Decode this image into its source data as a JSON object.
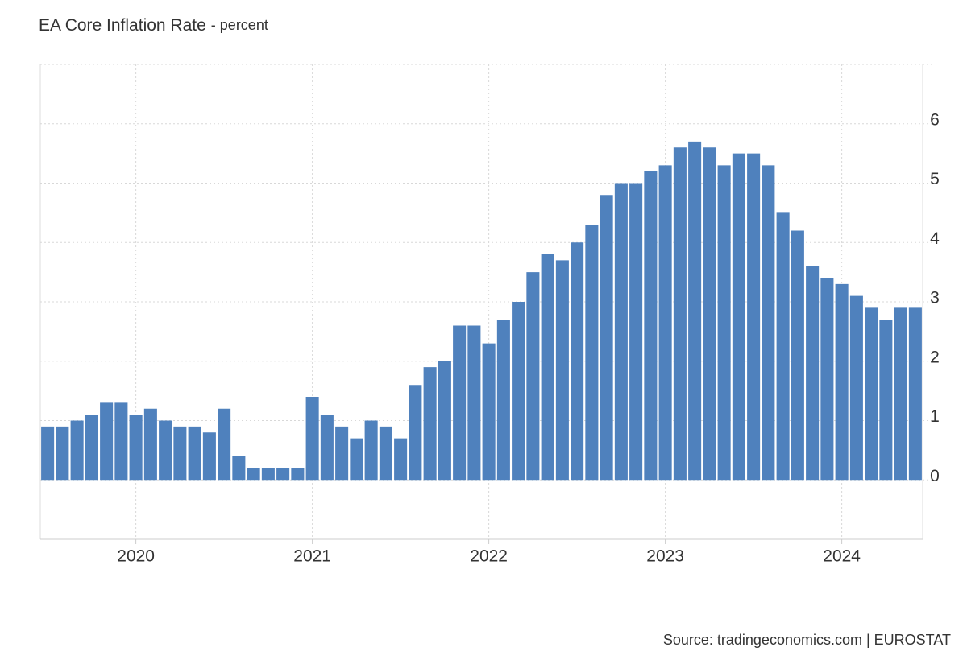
{
  "chart_data": {
    "type": "bar",
    "title": "EA Core Inflation Rate",
    "subtitle": "- percent",
    "source": "Source: tradingeconomics.com | EUROSTAT",
    "categories": [
      null,
      null,
      null,
      null,
      null,
      null,
      "2020",
      null,
      null,
      null,
      null,
      null,
      null,
      null,
      null,
      null,
      null,
      null,
      "2021",
      null,
      null,
      null,
      null,
      null,
      null,
      null,
      null,
      null,
      null,
      null,
      "2022",
      null,
      null,
      null,
      null,
      null,
      null,
      null,
      null,
      null,
      null,
      null,
      "2023",
      null,
      null,
      null,
      null,
      null,
      null,
      null,
      null,
      null,
      null,
      null,
      "2024",
      null,
      null,
      null,
      null,
      null
    ],
    "values": [
      0.9,
      0.9,
      1.0,
      1.1,
      1.3,
      1.3,
      1.1,
      1.2,
      1.0,
      0.9,
      0.9,
      0.8,
      1.2,
      0.4,
      0.2,
      0.2,
      0.2,
      0.2,
      1.4,
      1.1,
      0.9,
      0.7,
      1.0,
      0.9,
      0.7,
      1.6,
      1.9,
      2.0,
      2.6,
      2.6,
      2.3,
      2.7,
      3.0,
      3.5,
      3.8,
      3.7,
      4.0,
      4.3,
      4.8,
      5.0,
      5.0,
      5.2,
      5.3,
      5.6,
      5.7,
      5.6,
      5.3,
      5.5,
      5.5,
      5.3,
      4.5,
      4.2,
      3.6,
      3.4,
      3.3,
      3.1,
      2.9,
      2.7,
      2.9,
      2.9
    ],
    "color": "#4f81bd",
    "ylim": [
      -1,
      7
    ],
    "yticks": [
      0,
      1,
      2,
      3,
      4,
      5,
      6
    ],
    "grid": true
  }
}
